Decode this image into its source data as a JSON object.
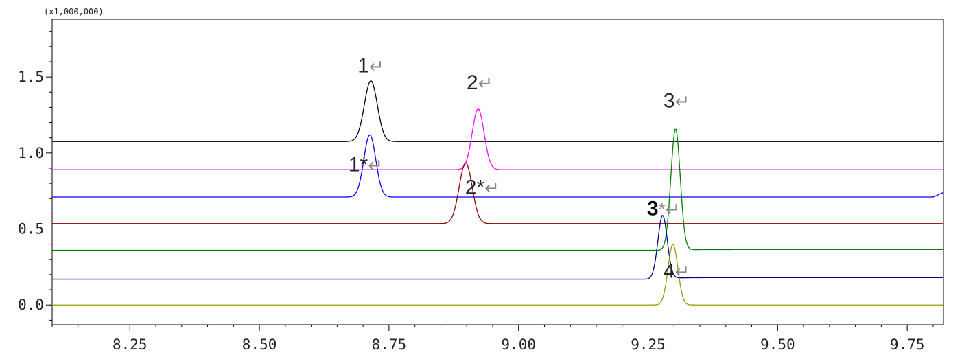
{
  "chart_data": {
    "type": "line",
    "scale_label": "(x1,000,000)",
    "xlim": [
      8.1,
      9.82
    ],
    "ylim": [
      -0.13,
      1.88
    ],
    "x_ticks": [
      {
        "value": 8.25,
        "label": "8.25"
      },
      {
        "value": 8.5,
        "label": "8.50"
      },
      {
        "value": 8.75,
        "label": "8.75"
      },
      {
        "value": 9.0,
        "label": "9.00"
      },
      {
        "value": 9.25,
        "label": "9.25"
      },
      {
        "value": 9.5,
        "label": "9.50"
      },
      {
        "value": 9.75,
        "label": "9.75"
      }
    ],
    "y_ticks": [
      {
        "value": 0.0,
        "label": "0.0"
      },
      {
        "value": 0.5,
        "label": "0.5"
      },
      {
        "value": 1.0,
        "label": "1.0"
      },
      {
        "value": 1.5,
        "label": "1.5"
      }
    ],
    "series": [
      {
        "color": "#000000",
        "baseline": 1.075,
        "peaks": [
          {
            "center": 8.715,
            "height": 0.4,
            "sigma": 0.0125
          }
        ]
      },
      {
        "color": "#ff00ff",
        "baseline": 0.89,
        "peaks": [
          {
            "center": 8.922,
            "height": 0.4,
            "sigma": 0.0115
          }
        ]
      },
      {
        "color": "#0000ff",
        "baseline": 0.71,
        "peaks": [
          {
            "center": 8.713,
            "height": 0.41,
            "sigma": 0.0115
          }
        ],
        "end_rise": 0.03
      },
      {
        "color": "#8b0000",
        "baseline": 0.535,
        "peaks": [
          {
            "center": 8.898,
            "height": 0.4,
            "sigma": 0.0125
          }
        ]
      },
      {
        "color": "#008000",
        "baseline": 0.36,
        "peaks": [
          {
            "center": 9.303,
            "height": 0.8,
            "sigma": 0.009
          }
        ],
        "after_offset": 0.005
      },
      {
        "color": "#00008b",
        "baseline": 0.17,
        "peaks": [
          {
            "center": 9.278,
            "height": 0.42,
            "sigma": 0.009
          }
        ],
        "after_offset": 0.01
      },
      {
        "color": "#999900",
        "baseline": 0.0,
        "peaks": [
          {
            "center": 9.298,
            "height": 0.4,
            "sigma": 0.0095
          }
        ]
      }
    ],
    "annotations": [
      {
        "text": "1",
        "marker": "↵",
        "x": 8.715,
        "y": 1.53,
        "bold": false
      },
      {
        "text": "2",
        "marker": "↵",
        "x": 8.925,
        "y": 1.42,
        "bold": false
      },
      {
        "text": "3",
        "marker": "↵",
        "x": 9.305,
        "y": 1.3,
        "bold": false
      },
      {
        "text": "1*",
        "marker": "↵",
        "x": 8.705,
        "y": 0.88,
        "bold": false
      },
      {
        "text": "2*",
        "marker": "↵",
        "x": 8.93,
        "y": 0.73,
        "bold": false
      },
      {
        "text": "3",
        "marker": "*↵",
        "x": 9.28,
        "y": 0.59,
        "bold": true
      },
      {
        "text": "4",
        "marker": "↵",
        "x": 9.305,
        "y": 0.18,
        "bold": false
      }
    ]
  }
}
